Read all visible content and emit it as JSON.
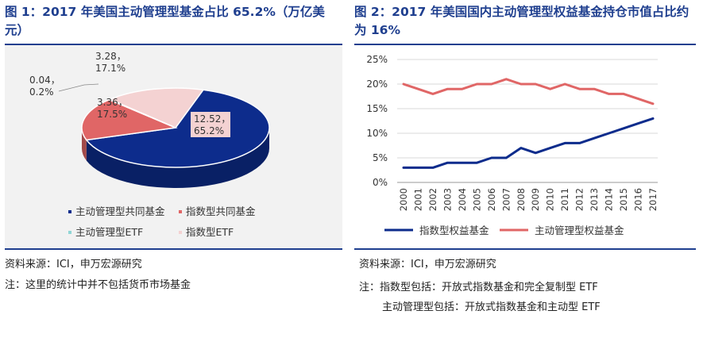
{
  "figure1": {
    "title": "图 1：2017 年美国主动管理型基金占比 65.2%（万亿美元）",
    "source": "资料来源：ICI，申万宏源研究",
    "note": "注：这里的统计中并不包括货币市场基金",
    "colors": {
      "active_mutual": "#0d2c8c",
      "index_mutual": "#e06666",
      "active_etf": "#8fd6d6",
      "index_etf": "#f4d2d2"
    },
    "chart_data": {
      "type": "pie",
      "title": "",
      "slices": [
        {
          "name": "主动管理型共同基金",
          "value": 12.52,
          "percent": "65.2%",
          "label": "12.52，\n65.2%"
        },
        {
          "name": "指数型共同基金",
          "value": 3.36,
          "percent": "17.5%",
          "label": "3.36，\n17.5%"
        },
        {
          "name": "主动管理型ETF",
          "value": 0.04,
          "percent": "0.2%",
          "label": "0.04，\n0.2%"
        },
        {
          "name": "指数型ETF",
          "value": 3.28,
          "percent": "17.1%",
          "label": "3.28，\n17.1%"
        }
      ],
      "legend_position": "bottom"
    }
  },
  "figure2": {
    "title": "图 2：2017 年美国国内主动管理型权益基金持仓市值占比约为 16%",
    "source": "资料来源：ICI，申万宏源研究",
    "note1": "注：指数型包括：开放式指数基金和完全复制型 ETF",
    "note2": "主动管理型包括：开放式指数基金和主动型 ETF",
    "colors": {
      "index": "#0d2c8c",
      "active": "#e06666",
      "grid": "#d9d9d9"
    },
    "chart_data": {
      "type": "line",
      "x": [
        "2000",
        "2001",
        "2002",
        "2003",
        "2004",
        "2005",
        "2006",
        "2007",
        "2008",
        "2009",
        "2010",
        "2011",
        "2012",
        "2013",
        "2014",
        "2015",
        "2016",
        "2017"
      ],
      "series": [
        {
          "name": "指数型权益基金",
          "values": [
            3,
            3,
            3,
            4,
            4,
            4,
            5,
            5,
            7,
            6,
            7,
            8,
            8,
            9,
            10,
            11,
            12,
            13
          ]
        },
        {
          "name": "主动管理型权益基金",
          "values": [
            20,
            19,
            18,
            19,
            19,
            20,
            20,
            21,
            20,
            20,
            19,
            20,
            19,
            19,
            18,
            18,
            17,
            16
          ]
        }
      ],
      "y_ticks": [
        "0%",
        "5%",
        "10%",
        "15%",
        "20%",
        "25%"
      ],
      "ylim": [
        0,
        25
      ],
      "grid": true,
      "legend_position": "bottom"
    }
  }
}
